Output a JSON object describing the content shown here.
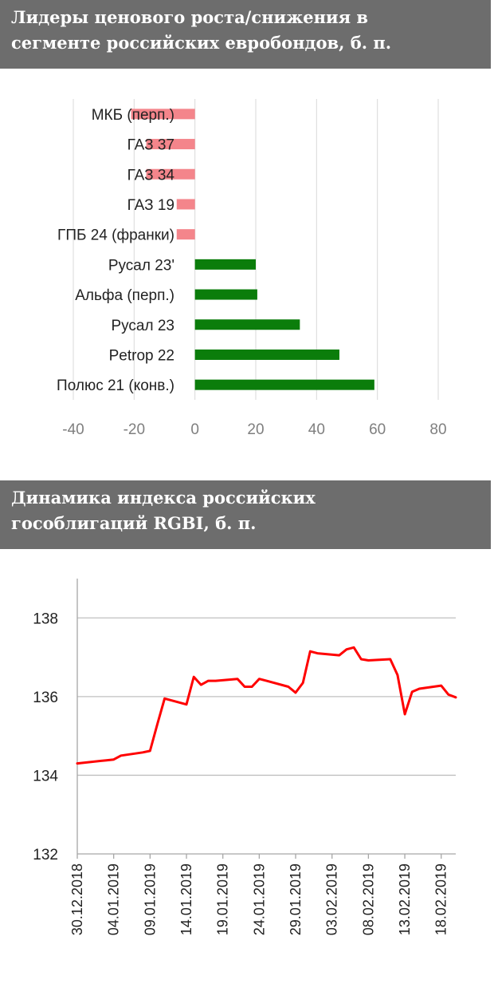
{
  "charts": [
    {
      "title_lines": [
        "Лидеры ценового роста/снижения в",
        "сегменте российских евробондов, б. п."
      ]
    },
    {
      "title_lines": [
        "Динамика индекса российских",
        "гособлигаций RGBI, б. п."
      ]
    }
  ],
  "chart_data": [
    {
      "type": "bar",
      "orientation": "horizontal",
      "title": "Лидеры ценового роста/снижения в сегменте российских евробондов, б. п.",
      "categories": [
        "МКБ (перп.)",
        "ГАЗ 37",
        "ГАЗ 34",
        "ГАЗ 19",
        "ГПБ 24 (франки)",
        "Русал 23'",
        "Альфа (перп.)",
        "Русал 23",
        "Petrop 22",
        "Полюс 21 (конв.)"
      ],
      "values": [
        -21,
        -16,
        -16,
        -6,
        -6,
        20,
        20.5,
        34.5,
        47.5,
        59
      ],
      "xlim": [
        -40,
        80
      ],
      "xticks": [
        -40,
        -20,
        0,
        20,
        40,
        60,
        80
      ],
      "grid": true,
      "colors": {
        "negative": "#f4858b",
        "positive": "#0b7d0b",
        "grid": "#d9d9d9"
      }
    },
    {
      "type": "line",
      "title": "Динамика индекса российских гособлигаций RGBI, б. п.",
      "x": [
        "30.12.2018",
        "03.01.2019",
        "04.01.2019",
        "05.01.2019",
        "08.01.2019",
        "09.01.2019",
        "10.01.2019",
        "11.01.2019",
        "14.01.2019",
        "15.01.2019",
        "16.01.2019",
        "17.01.2019",
        "18.01.2019",
        "21.01.2019",
        "22.01.2019",
        "23.01.2019",
        "24.01.2019",
        "25.01.2019",
        "28.01.2019",
        "29.01.2019",
        "30.01.2019",
        "31.01.2019",
        "01.02.2019",
        "04.02.2019",
        "05.02.2019",
        "06.02.2019",
        "07.02.2019",
        "08.02.2019",
        "11.02.2019",
        "12.02.2019",
        "13.02.2019",
        "14.02.2019",
        "15.02.2019",
        "18.02.2019",
        "19.02.2019",
        "20.02.2019"
      ],
      "y": [
        134.3,
        134.38,
        134.4,
        134.5,
        134.58,
        134.62,
        135.3,
        135.95,
        135.8,
        136.5,
        136.3,
        136.4,
        136.4,
        136.45,
        136.25,
        136.25,
        136.45,
        136.4,
        136.25,
        136.1,
        136.35,
        137.15,
        137.1,
        137.05,
        137.2,
        137.25,
        136.95,
        136.92,
        136.95,
        136.55,
        135.55,
        136.12,
        136.2,
        136.28,
        136.05,
        135.98
      ],
      "xticks": [
        "30.12.2018",
        "04.01.2019",
        "09.01.2019",
        "14.01.2019",
        "19.01.2019",
        "24.01.2019",
        "29.01.2019",
        "03.02.2019",
        "08.02.2019",
        "13.02.2019",
        "18.02.2019"
      ],
      "ylim": [
        132,
        139
      ],
      "yticks": [
        132,
        134,
        136,
        138
      ],
      "grid": true,
      "colors": {
        "line": "#ff0000",
        "grid": "#c0c0c0",
        "axis": "#a6a6a6"
      }
    }
  ]
}
